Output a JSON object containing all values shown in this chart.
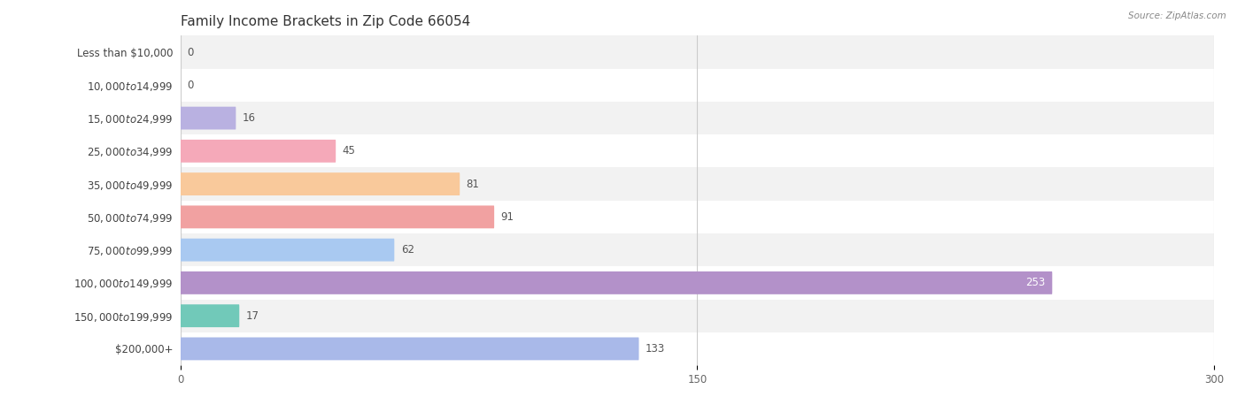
{
  "title": "Family Income Brackets in Zip Code 66054",
  "source": "Source: ZipAtlas.com",
  "categories": [
    "Less than $10,000",
    "$10,000 to $14,999",
    "$15,000 to $24,999",
    "$25,000 to $34,999",
    "$35,000 to $49,999",
    "$50,000 to $74,999",
    "$75,000 to $99,999",
    "$100,000 to $149,999",
    "$150,000 to $199,999",
    "$200,000+"
  ],
  "values": [
    0,
    0,
    16,
    45,
    81,
    91,
    62,
    253,
    17,
    133
  ],
  "bar_colors": [
    "#c9aed5",
    "#7dcdc3",
    "#b9b1e1",
    "#f5a9b9",
    "#f9c99b",
    "#f1a1a1",
    "#a9c9f1",
    "#b391c9",
    "#71c9b9",
    "#a9b9e9"
  ],
  "background_color": "#ffffff",
  "row_bg_colors": [
    "#f2f2f2",
    "#ffffff"
  ],
  "xlim": [
    0,
    300
  ],
  "xticks": [
    0,
    150,
    300
  ],
  "title_fontsize": 11,
  "label_fontsize": 8.5,
  "value_fontsize": 8.5,
  "bar_height": 0.55
}
